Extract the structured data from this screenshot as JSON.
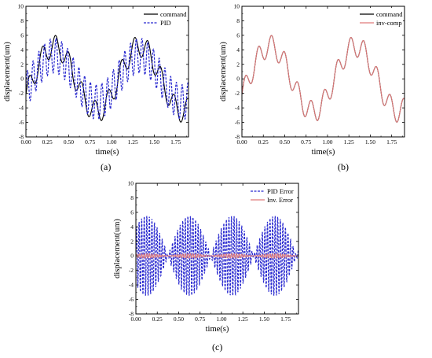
{
  "chart_data": [
    {
      "type": "line",
      "caption": "(a)",
      "xlabel": "time(s)",
      "ylabel": "displacement(um)",
      "xlim": [
        0,
        1.9
      ],
      "ylim": [
        -8,
        10
      ],
      "xticks": [
        "0.00",
        "0.25",
        "0.50",
        "0.75",
        "1.00",
        "1.25",
        "1.50",
        "1.75"
      ],
      "yticks": [
        "-8",
        "-6",
        "-4",
        "-2",
        "0",
        "2",
        "4",
        "6",
        "8",
        "10"
      ],
      "legend_position": "top-right",
      "grid": false,
      "series": [
        {
          "name": "command",
          "color": "#000000",
          "style": "solid",
          "signal": {
            "base_amplitude": 4.5,
            "base_period": 1.0,
            "ripple_amplitude": 1.5,
            "ripple_period": 0.154
          }
        },
        {
          "name": "PID",
          "color": "#2a2ad0",
          "style": "dashed",
          "signal": {
            "base_amplitude": 3.2,
            "base_period": 1.0,
            "ripple_amplitude": 2.4,
            "ripple_period": 0.067
          }
        }
      ]
    },
    {
      "type": "line",
      "caption": "(b)",
      "xlabel": "time(s)",
      "ylabel": "displacement(um)",
      "xlim": [
        0,
        1.9
      ],
      "ylim": [
        -8,
        10
      ],
      "xticks": [
        "0.00",
        "0.25",
        "0.50",
        "0.75",
        "1.00",
        "1.25",
        "1.50",
        "1.75"
      ],
      "yticks": [
        "-8",
        "-6",
        "-4",
        "-2",
        "0",
        "2",
        "4",
        "6",
        "8",
        "10"
      ],
      "legend_position": "top-right",
      "grid": false,
      "series": [
        {
          "name": "command",
          "color": "#000000",
          "style": "solid",
          "signal": {
            "base_amplitude": 4.5,
            "base_period": 1.0,
            "ripple_amplitude": 1.5,
            "ripple_period": 0.154
          }
        },
        {
          "name": "inv-comp",
          "color": "#e07a7a",
          "style": "solid",
          "signal": {
            "base_amplitude": 4.5,
            "base_period": 1.0,
            "ripple_amplitude": 1.5,
            "ripple_period": 0.154
          }
        }
      ]
    },
    {
      "type": "line",
      "caption": "(c)",
      "xlabel": "time(s)",
      "ylabel": "displacement(um)",
      "xlim": [
        0,
        1.9
      ],
      "ylim": [
        -8,
        10
      ],
      "xticks": [
        "0.00",
        "0.25",
        "0.50",
        "0.75",
        "1.00",
        "1.25",
        "1.50",
        "1.75"
      ],
      "yticks": [
        "-8",
        "-6",
        "-4",
        "-2",
        "0",
        "2",
        "4",
        "6",
        "8",
        "10"
      ],
      "legend_position": "top-right",
      "grid": false,
      "series": [
        {
          "name": "PID Error",
          "color": "#2a2ad0",
          "style": "dashed",
          "signal": {
            "envelope_amplitude": 5.5,
            "envelope_period": 0.5,
            "oscillation_period": 0.03
          }
        },
        {
          "name": "Inv. Error",
          "color": "#e07a7a",
          "style": "solid",
          "signal": {
            "envelope_amplitude": 0.3,
            "envelope_period": 0.5,
            "oscillation_period": 0.03
          }
        }
      ]
    }
  ]
}
